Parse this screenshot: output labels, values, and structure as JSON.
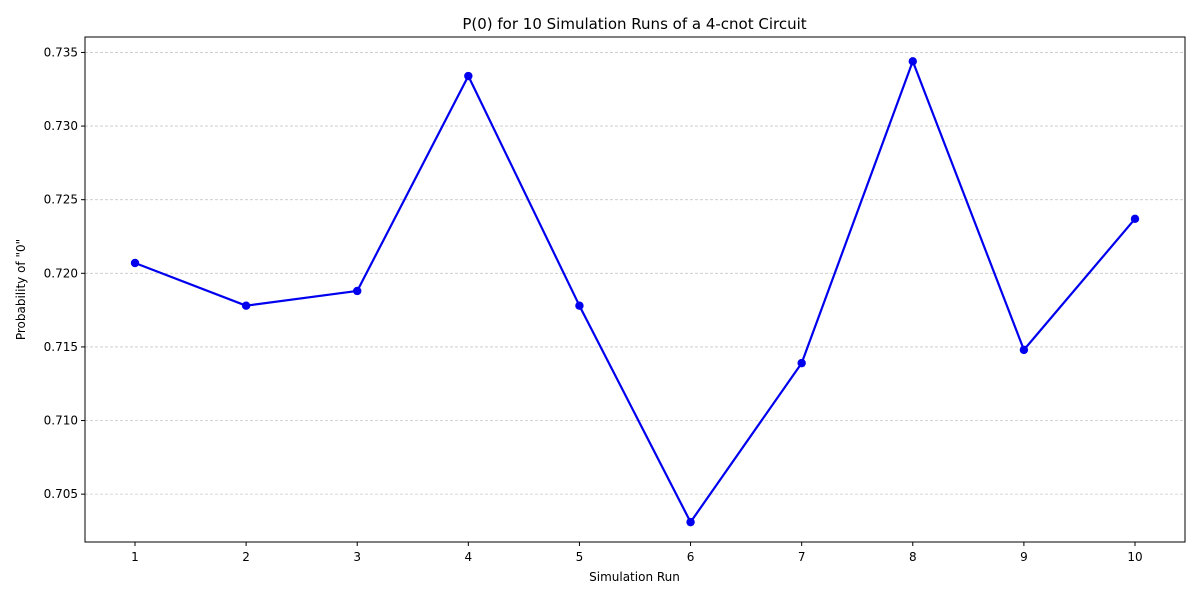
{
  "colors": {
    "series": "#0000ee",
    "grid": "#c8c8c8",
    "axis": "#000000"
  },
  "chart_data": {
    "type": "line",
    "title": "P(0) for 10 Simulation Runs of a 4-cnot Circuit",
    "xlabel": "Simulation Run",
    "ylabel": "Probability of \"0\"",
    "x": [
      1,
      2,
      3,
      4,
      5,
      6,
      7,
      8,
      9,
      10
    ],
    "xticks": [
      "1",
      "2",
      "3",
      "4",
      "5",
      "6",
      "7",
      "8",
      "9",
      "10"
    ],
    "yticks": [
      "0.705",
      "0.710",
      "0.715",
      "0.720",
      "0.725",
      "0.730",
      "0.735"
    ],
    "xlim": [
      0.55,
      10.45
    ],
    "ylim": [
      0.70175,
      0.73605
    ],
    "grid": "y-dashed",
    "marker": "circle",
    "series": [
      {
        "values": [
          0.7207,
          0.7178,
          0.7188,
          0.7334,
          0.7178,
          0.7031,
          0.7139,
          0.7344,
          0.7148,
          0.7237
        ]
      }
    ]
  }
}
